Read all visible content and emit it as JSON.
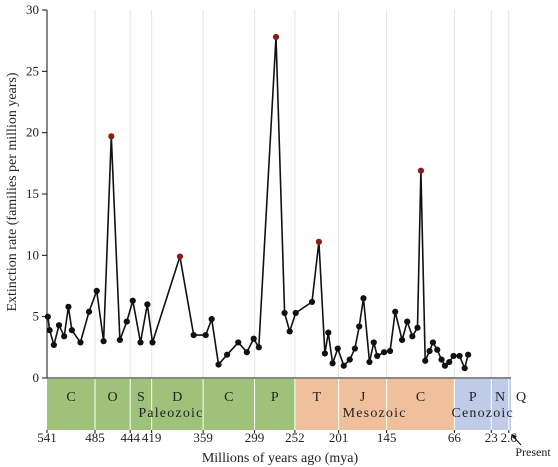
{
  "chart_data": {
    "type": "line",
    "xlabel": "Millions of years ago (mya)",
    "ylabel": "Extinction rate (families per million years)",
    "x_reversed": true,
    "xlim": [
      541,
      0
    ],
    "ylim": [
      0,
      30
    ],
    "y_ticks": [
      0,
      5,
      10,
      15,
      20,
      25,
      30
    ],
    "x_ticks": [
      {
        "value": 541,
        "label": "541"
      },
      {
        "value": 485,
        "label": "485"
      },
      {
        "value": 444,
        "label": "444"
      },
      {
        "value": 419,
        "label": "419"
      },
      {
        "value": 359,
        "label": "359"
      },
      {
        "value": 299,
        "label": "299"
      },
      {
        "value": 252,
        "label": "252"
      },
      {
        "value": 201,
        "label": "201"
      },
      {
        "value": 145,
        "label": "145"
      },
      {
        "value": 66,
        "label": "66"
      },
      {
        "value": 23,
        "label": "23"
      },
      {
        "value": 2.6,
        "label": "2.6"
      }
    ],
    "grid": "vertical at period boundaries",
    "present_label": "Present",
    "series_color": "#111111",
    "peak_color": "#8b1a1a",
    "points": [
      {
        "x": 540,
        "y": 5.0
      },
      {
        "x": 538,
        "y": 3.9
      },
      {
        "x": 533,
        "y": 2.7
      },
      {
        "x": 527,
        "y": 4.3
      },
      {
        "x": 521,
        "y": 3.4
      },
      {
        "x": 516,
        "y": 5.8
      },
      {
        "x": 512,
        "y": 3.9
      },
      {
        "x": 502,
        "y": 2.9
      },
      {
        "x": 492,
        "y": 5.4
      },
      {
        "x": 483,
        "y": 7.1
      },
      {
        "x": 475,
        "y": 3.0
      },
      {
        "x": 466,
        "y": 19.7,
        "peak": true
      },
      {
        "x": 456,
        "y": 3.1
      },
      {
        "x": 448,
        "y": 4.6
      },
      {
        "x": 441,
        "y": 6.3
      },
      {
        "x": 432,
        "y": 2.9
      },
      {
        "x": 424,
        "y": 6.0
      },
      {
        "x": 418,
        "y": 2.9
      },
      {
        "x": 386,
        "y": 9.9,
        "peak": true
      },
      {
        "x": 370,
        "y": 3.5
      },
      {
        "x": 356,
        "y": 3.5
      },
      {
        "x": 349,
        "y": 4.8
      },
      {
        "x": 341,
        "y": 1.1
      },
      {
        "x": 331,
        "y": 1.9
      },
      {
        "x": 318,
        "y": 2.9
      },
      {
        "x": 308,
        "y": 2.1
      },
      {
        "x": 300,
        "y": 3.2
      },
      {
        "x": 294,
        "y": 2.5
      },
      {
        "x": 274,
        "y": 27.8,
        "peak": true
      },
      {
        "x": 264,
        "y": 5.3
      },
      {
        "x": 258,
        "y": 3.8
      },
      {
        "x": 251,
        "y": 5.3
      },
      {
        "x": 232,
        "y": 6.2
      },
      {
        "x": 224,
        "y": 11.1,
        "peak": true
      },
      {
        "x": 217,
        "y": 2.0
      },
      {
        "x": 213,
        "y": 3.7
      },
      {
        "x": 208,
        "y": 1.2
      },
      {
        "x": 202,
        "y": 2.4
      },
      {
        "x": 195,
        "y": 1.0
      },
      {
        "x": 188,
        "y": 1.5
      },
      {
        "x": 182,
        "y": 2.4
      },
      {
        "x": 177,
        "y": 4.2
      },
      {
        "x": 172,
        "y": 6.5
      },
      {
        "x": 165,
        "y": 1.3
      },
      {
        "x": 160,
        "y": 2.9
      },
      {
        "x": 156,
        "y": 1.8
      },
      {
        "x": 148,
        "y": 2.1
      },
      {
        "x": 141,
        "y": 2.2
      },
      {
        "x": 135,
        "y": 5.4
      },
      {
        "x": 127,
        "y": 3.1
      },
      {
        "x": 121,
        "y": 4.6
      },
      {
        "x": 115,
        "y": 3.4
      },
      {
        "x": 109,
        "y": 4.1
      },
      {
        "x": 105,
        "y": 16.9,
        "peak": true
      },
      {
        "x": 100,
        "y": 1.4
      },
      {
        "x": 95,
        "y": 2.2
      },
      {
        "x": 91,
        "y": 2.9
      },
      {
        "x": 86,
        "y": 2.3
      },
      {
        "x": 81,
        "y": 1.5
      },
      {
        "x": 77,
        "y": 1.0
      },
      {
        "x": 72,
        "y": 1.3
      },
      {
        "x": 67,
        "y": 1.8
      },
      {
        "x": 60,
        "y": 1.8
      },
      {
        "x": 54,
        "y": 0.8
      },
      {
        "x": 50,
        "y": 1.9
      }
    ],
    "periods": [
      {
        "label": "C",
        "start": 541,
        "end": 485,
        "color": "#9fc27a"
      },
      {
        "label": "O",
        "start": 485,
        "end": 444,
        "color": "#9fc27a"
      },
      {
        "label": "S",
        "start": 444,
        "end": 419,
        "color": "#9fc27a"
      },
      {
        "label": "D",
        "start": 419,
        "end": 359,
        "color": "#9fc27a"
      },
      {
        "label": "C",
        "start": 359,
        "end": 299,
        "color": "#9fc27a"
      },
      {
        "label": "P",
        "start": 299,
        "end": 252,
        "color": "#9fc27a"
      },
      {
        "label": "T",
        "start": 252,
        "end": 201,
        "color": "#f0c09c"
      },
      {
        "label": "J",
        "start": 201,
        "end": 145,
        "color": "#f0c09c"
      },
      {
        "label": "C",
        "start": 145,
        "end": 66,
        "color": "#f0c09c"
      },
      {
        "label": "P",
        "start": 66,
        "end": 23,
        "color": "#bfcbe8"
      },
      {
        "label": "N",
        "start": 23,
        "end": 2.6,
        "color": "#bfcbe8"
      },
      {
        "label": "Q",
        "start": 2.6,
        "end": 0,
        "color": "#bfcbe8"
      }
    ],
    "eras": [
      {
        "label": "Paleozoic",
        "start": 541,
        "end": 252
      },
      {
        "label": "Mesozoic",
        "start": 252,
        "end": 66
      },
      {
        "label": "Cenozoic",
        "start": 66,
        "end": 0
      }
    ]
  }
}
